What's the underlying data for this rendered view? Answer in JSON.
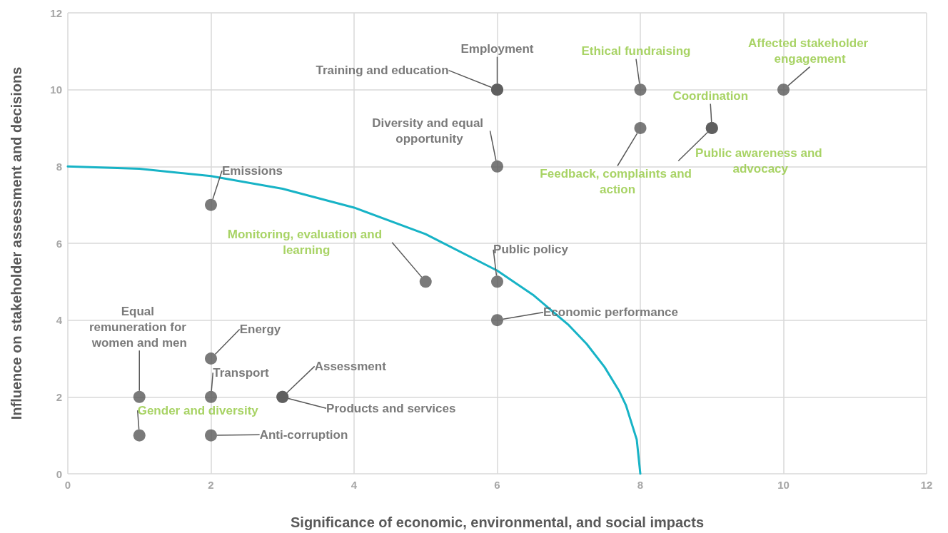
{
  "chart_data": {
    "type": "scatter",
    "xlabel": "Significance of economic, environmental, and social impacts",
    "ylabel": "Influence on stakeholder assessment and decisions",
    "xlim": [
      0,
      12
    ],
    "xticks": [
      0,
      2,
      4,
      6,
      8,
      10,
      12
    ],
    "ylim": [
      0,
      12
    ],
    "yticks": [
      0,
      2,
      4,
      6,
      8,
      10,
      12
    ],
    "grid": true,
    "series": [
      {
        "type": "scatter",
        "marker": "circle",
        "color": "#595959",
        "x": [
          6,
          6,
          6,
          2,
          6,
          6,
          1,
          2,
          2,
          3,
          3,
          2
        ],
        "values": [
          10,
          10,
          8,
          7,
          5,
          4,
          2,
          3,
          2,
          2,
          2,
          1
        ],
        "value_labels": [
          "Employment",
          "Training and education",
          "Diversity and equal opportunity",
          "Emissions",
          "Public policy",
          "Economic performance",
          "Equal remuneration for women and men",
          "Energy",
          "Transport",
          "Assessment",
          "Products and services",
          "Anti-corruption"
        ]
      },
      {
        "type": "scatter",
        "marker": "circle",
        "color": "#595959",
        "x": [
          8,
          8,
          9,
          9,
          10,
          5,
          1
        ],
        "values": [
          10,
          9,
          9,
          9,
          10,
          5,
          1
        ],
        "value_labels": [
          "Ethical fundraising",
          "Feedback, complaints and action",
          "Coordination",
          "Public awareness and advocacy",
          "Affected stakeholder engagement",
          "Monitoring, evaluation and learning",
          "Gender and diversity"
        ]
      },
      {
        "type": "line",
        "marker": "none",
        "color": "#17b3c6",
        "line_style": "solid",
        "x": [
          0,
          1,
          2,
          3,
          4,
          5,
          6,
          6.5,
          7,
          7.25,
          7.5,
          7.7,
          7.8,
          7.95,
          8
        ],
        "values": [
          8,
          7.94,
          7.75,
          7.42,
          6.93,
          6.24,
          5.29,
          4.66,
          3.87,
          3.38,
          2.78,
          2.17,
          1.78,
          0.89,
          0
        ]
      }
    ]
  }
}
